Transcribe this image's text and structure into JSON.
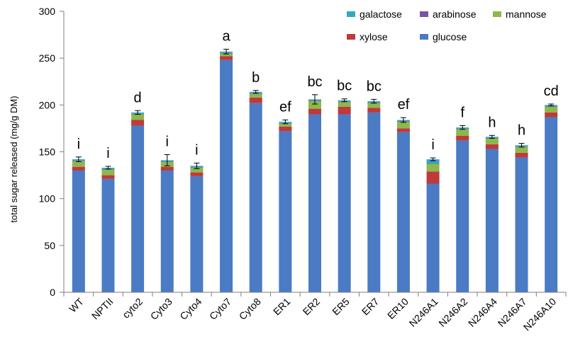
{
  "chart_data": {
    "type": "bar",
    "stacked": true,
    "ylabel": "total sugar released (mg/g DM)",
    "ylim": [
      0,
      300
    ],
    "yticks": [
      0,
      50,
      100,
      150,
      200,
      250,
      300
    ],
    "legend_position": "top-right",
    "categories": [
      "WT",
      "NPTII",
      "cyto2",
      "Cyto3",
      "Cyto4",
      "Cyto7",
      "Cyto8",
      "ER1",
      "ER2",
      "ER5",
      "ER7",
      "ER10",
      "N246A1",
      "N246A2",
      "N246A4",
      "N246A7",
      "N246A10"
    ],
    "significance": [
      "i",
      "i",
      "d",
      "i",
      "i",
      "a",
      "b",
      "ef",
      "bc",
      "bc",
      "bc",
      "ef",
      "i",
      "f",
      "h",
      "h",
      "cd"
    ],
    "series": [
      {
        "name": "glucose",
        "color": "#4A7BC4",
        "values": [
          130,
          121,
          178,
          130,
          124,
          248,
          202,
          172,
          190,
          190,
          192,
          171,
          116,
          162,
          153,
          144,
          187
        ]
      },
      {
        "name": "xylose",
        "color": "#C0393B",
        "values": [
          4,
          4,
          6,
          4,
          4,
          4,
          6,
          5,
          6,
          8,
          5,
          4,
          13,
          5,
          5,
          5,
          5
        ]
      },
      {
        "name": "mannose",
        "color": "#8DB84A",
        "values": [
          6,
          6,
          6,
          5,
          5,
          3,
          4,
          3,
          8,
          5,
          5,
          7,
          8,
          7,
          6,
          6,
          6
        ]
      },
      {
        "name": "arabinose",
        "color": "#7B52A6",
        "values": [
          0.5,
          0.5,
          0.5,
          0.5,
          0.5,
          0.5,
          0.5,
          0.5,
          0.5,
          0.5,
          0.5,
          0.5,
          0.5,
          0.5,
          0.5,
          0.5,
          0.5
        ]
      },
      {
        "name": "galactose",
        "color": "#31A9C4",
        "values": [
          1.5,
          1.5,
          1.5,
          1.5,
          1.5,
          1.5,
          1.5,
          1.5,
          1.5,
          1.5,
          1.5,
          1.5,
          4.5,
          1.5,
          1.5,
          1.5,
          1.5
        ]
      }
    ],
    "error": [
      2.5,
      1.5,
      2,
      6,
      3,
      2.5,
      1.5,
      2,
      5,
      1.5,
      2,
      2.5,
      1.5,
      2,
      1.5,
      2,
      1
    ]
  },
  "legend": {
    "items": [
      {
        "name": "galactose",
        "color": "#31A9C4"
      },
      {
        "name": "arabinose",
        "color": "#7B52A6"
      },
      {
        "name": "mannose",
        "color": "#8DB84A"
      },
      {
        "name": "xylose",
        "color": "#C0393B"
      },
      {
        "name": "glucose",
        "color": "#4A7BC4"
      }
    ]
  }
}
